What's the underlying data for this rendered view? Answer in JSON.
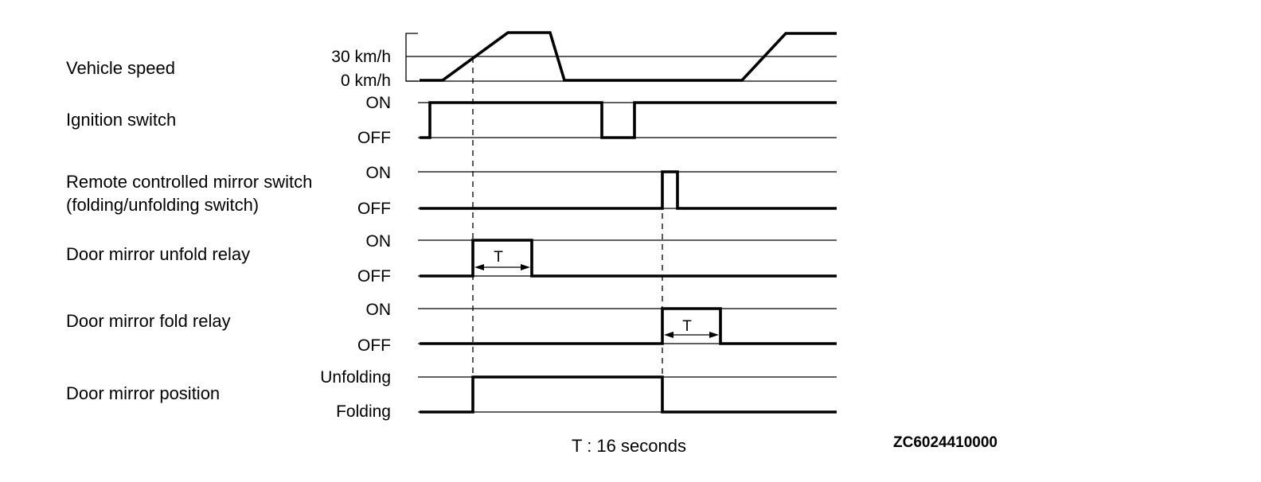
{
  "rows": [
    {
      "label": [
        "Vehicle speed"
      ],
      "high": "30 km/h",
      "low": "0 km/h"
    },
    {
      "label": [
        "Ignition switch"
      ],
      "high": "ON",
      "low": "OFF"
    },
    {
      "label": [
        "Remote controlled mirror switch",
        "(folding/unfolding switch)"
      ],
      "high": "ON",
      "low": "OFF"
    },
    {
      "label": [
        "Door mirror unfold relay"
      ],
      "high": "ON",
      "low": "OFF"
    },
    {
      "label": [
        "Door mirror fold relay"
      ],
      "high": "ON",
      "low": "OFF"
    },
    {
      "label": [
        "Door mirror position"
      ],
      "high": "Unfolding",
      "low": "Folding"
    }
  ],
  "t_marker": "T",
  "footnote": "T : 16 seconds",
  "figure_id": "ZC6024410000"
}
